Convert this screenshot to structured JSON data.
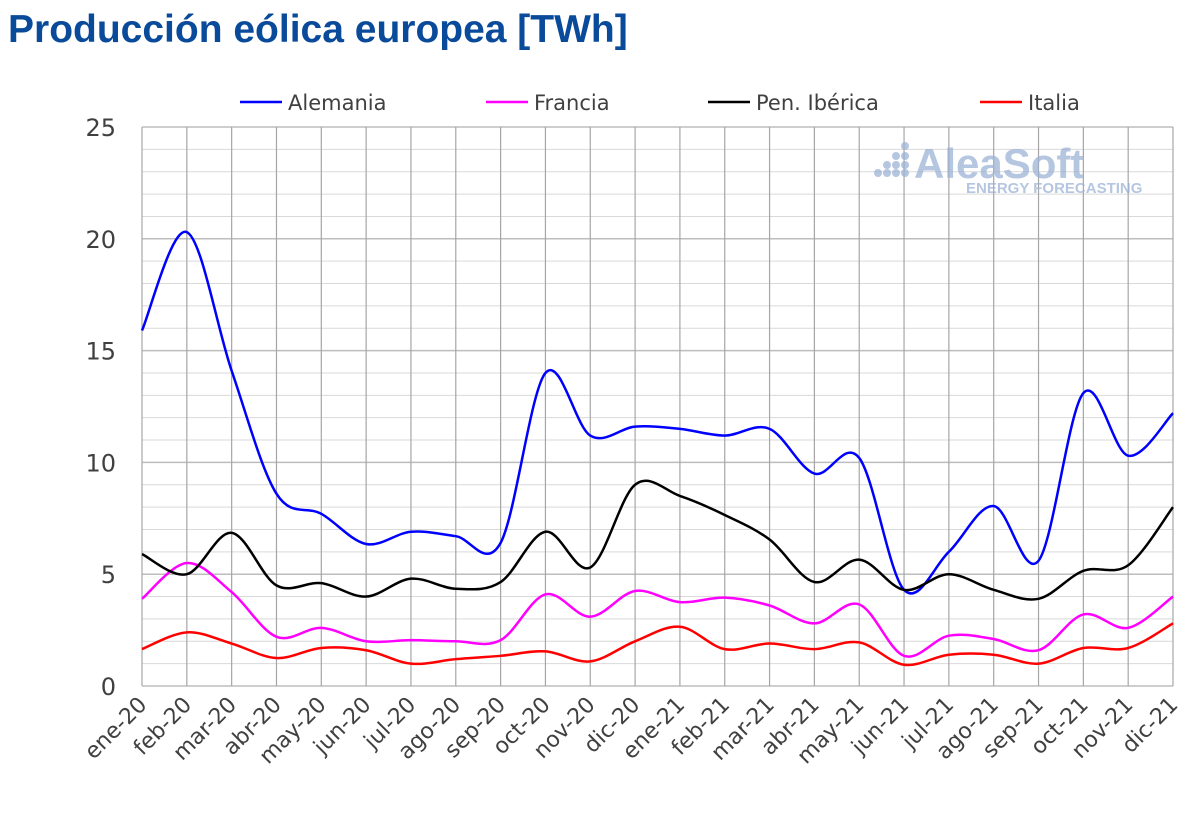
{
  "chart_data": {
    "type": "line",
    "title": "Producción eólica europea [TWh]",
    "xlabel": "",
    "ylabel": "",
    "ylim": [
      0,
      25
    ],
    "yticks": [
      0,
      5,
      10,
      15,
      20,
      25
    ],
    "grid": true,
    "legend_position": "top",
    "categories": [
      "ene-20",
      "feb-20",
      "mar-20",
      "abr-20",
      "may-20",
      "jun-20",
      "jul-20",
      "ago-20",
      "sep-20",
      "oct-20",
      "nov-20",
      "dic-20",
      "ene-21",
      "feb-21",
      "mar-21",
      "abr-21",
      "may-21",
      "jun-21",
      "jul-21",
      "ago-21",
      "sep-21",
      "oct-21",
      "nov-21",
      "dic-21"
    ],
    "series": [
      {
        "name": "Alemania",
        "color": "#0000ff",
        "values": [
          15.9,
          20.3,
          14.1,
          8.6,
          7.7,
          6.35,
          6.9,
          6.7,
          6.4,
          14.0,
          11.2,
          11.6,
          11.5,
          11.2,
          11.5,
          9.5,
          10.2,
          4.3,
          6.0,
          8.05,
          5.6,
          13.1,
          10.3,
          12.2
        ]
      },
      {
        "name": "Francia",
        "color": "#ff00ff",
        "values": [
          3.9,
          5.5,
          4.2,
          2.2,
          2.6,
          2.0,
          2.05,
          2.0,
          2.05,
          4.1,
          3.1,
          4.25,
          3.75,
          3.95,
          3.6,
          2.8,
          3.65,
          1.35,
          2.25,
          2.1,
          1.6,
          3.2,
          2.6,
          4.0
        ]
      },
      {
        "name": "Pen. Ibérica",
        "color": "#000000",
        "values": [
          5.9,
          5.0,
          6.85,
          4.5,
          4.6,
          4.0,
          4.8,
          4.35,
          4.65,
          6.9,
          5.3,
          9.0,
          8.5,
          7.65,
          6.55,
          4.65,
          5.65,
          4.3,
          5.0,
          4.3,
          3.9,
          5.15,
          5.4,
          8.0
        ]
      },
      {
        "name": "Italia",
        "color": "#ff0000",
        "values": [
          1.65,
          2.4,
          1.9,
          1.25,
          1.7,
          1.6,
          1.0,
          1.2,
          1.35,
          1.55,
          1.1,
          2.0,
          2.65,
          1.65,
          1.9,
          1.65,
          1.95,
          0.95,
          1.4,
          1.4,
          1.0,
          1.7,
          1.7,
          2.8
        ]
      }
    ]
  },
  "watermark": {
    "name": "AleaSoft",
    "tagline": "ENERGY FORECASTING"
  }
}
